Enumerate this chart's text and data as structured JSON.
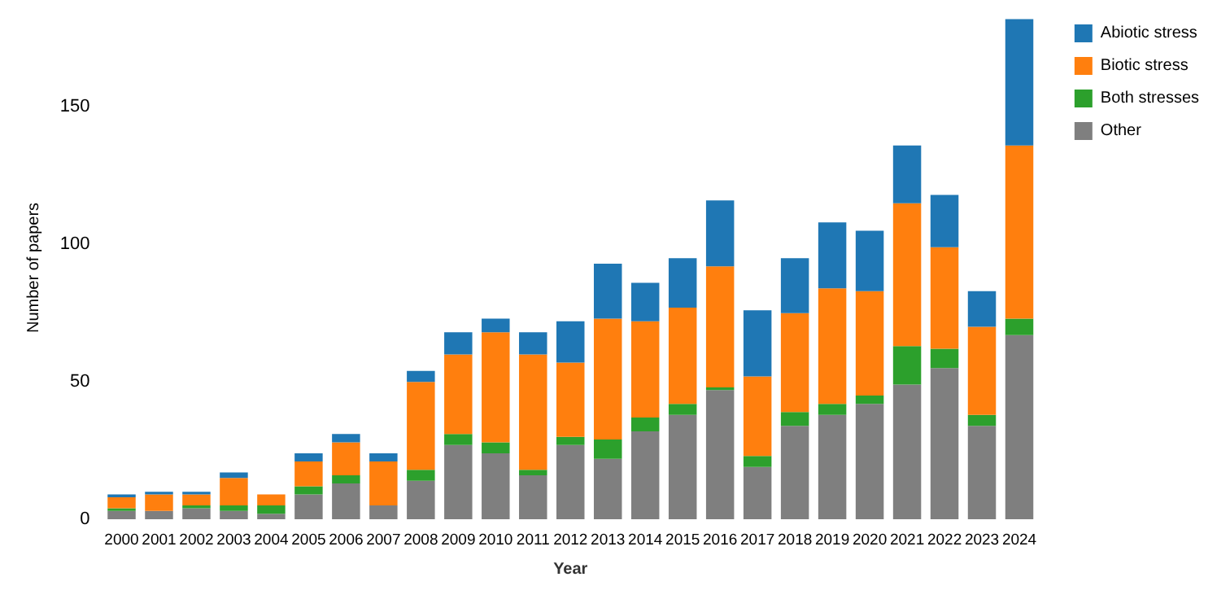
{
  "chart_data": {
    "type": "bar",
    "stacked": true,
    "xlabel": "Year",
    "ylabel": "Number of papers",
    "categories": [
      "2000",
      "2001",
      "2002",
      "2003",
      "2004",
      "2005",
      "2006",
      "2007",
      "2008",
      "2009",
      "2010",
      "2011",
      "2012",
      "2013",
      "2014",
      "2015",
      "2016",
      "2017",
      "2018",
      "2019",
      "2020",
      "2021",
      "2022",
      "2023",
      "2024"
    ],
    "series": [
      {
        "name": "Other",
        "color": "#7f7f7f",
        "values": [
          3,
          3,
          4,
          3,
          2,
          9,
          13,
          5,
          14,
          27,
          24,
          16,
          27,
          22,
          32,
          38,
          47,
          19,
          34,
          38,
          42,
          49,
          55,
          34,
          67
        ]
      },
      {
        "name": "Both stresses",
        "color": "#2ca02c",
        "values": [
          1,
          0,
          1,
          2,
          3,
          3,
          3,
          0,
          4,
          4,
          4,
          2,
          3,
          7,
          5,
          4,
          1,
          4,
          5,
          4,
          3,
          14,
          7,
          4,
          6
        ]
      },
      {
        "name": "Biotic stress",
        "color": "#ff7f0e",
        "values": [
          4,
          6,
          4,
          10,
          4,
          9,
          12,
          16,
          32,
          29,
          40,
          42,
          27,
          44,
          35,
          35,
          44,
          29,
          36,
          42,
          38,
          52,
          37,
          32,
          63
        ]
      },
      {
        "name": "Abiotic stress",
        "color": "#1f77b4",
        "values": [
          1,
          1,
          1,
          2,
          0,
          3,
          3,
          3,
          4,
          8,
          5,
          8,
          15,
          20,
          14,
          18,
          24,
          24,
          20,
          24,
          22,
          21,
          19,
          13,
          46
        ]
      }
    ],
    "ylim": [
      0,
      183
    ],
    "yticks": [
      0,
      50,
      100,
      150
    ],
    "grid": false,
    "legend": "top right"
  }
}
